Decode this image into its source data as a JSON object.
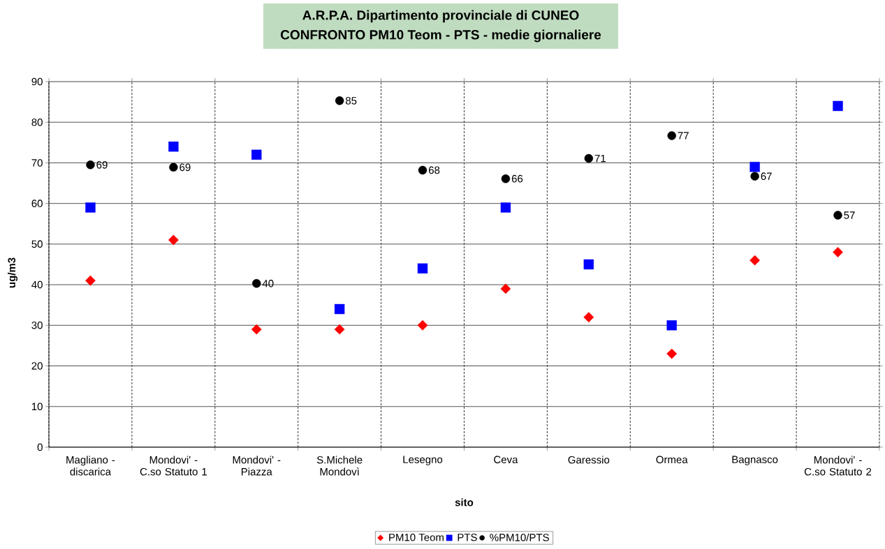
{
  "chart_data": {
    "type": "scatter",
    "title": "A.R.P.A. Dipartimento provinciale di CUNEO",
    "subtitle": "CONFRONTO PM10 Teom - PTS - medie giornaliere",
    "xlabel": "sito",
    "ylabel": "ug/m3",
    "categories": [
      "Magliano - discarica",
      "Mondovi' - C.so Statuto 1",
      "Mondovi' - Piazza",
      "S.Michele Mondovì",
      "Lesegno",
      "Ceva",
      "Garessio",
      "Ormea",
      "Bagnasco",
      "Mondovi' - C.so Statuto 2"
    ],
    "series": [
      {
        "name": "PM10 Teom",
        "color": "#ff0000",
        "marker": "diamond",
        "values": [
          41,
          51,
          29,
          29,
          30,
          39,
          32,
          23,
          46,
          48
        ]
      },
      {
        "name": "PTS",
        "color": "#0000ff",
        "marker": "square",
        "values": [
          59,
          74,
          72,
          34,
          44,
          59,
          45,
          30,
          69,
          84
        ]
      },
      {
        "name": "%PM10/PTS",
        "color": "#000000",
        "marker": "circle",
        "values": [
          69.5,
          68.9,
          40.3,
          85.3,
          68.2,
          66.1,
          71.1,
          76.7,
          66.7,
          57.1
        ],
        "value_labels": [
          "69",
          "69",
          "40",
          "85",
          "68",
          "66",
          "71",
          "77",
          "67",
          "57"
        ]
      }
    ],
    "ylim": [
      0,
      90
    ],
    "yticks": [
      0,
      10,
      20,
      30,
      40,
      50,
      60,
      70,
      80,
      90
    ],
    "grid": true,
    "legend": "bottom"
  }
}
